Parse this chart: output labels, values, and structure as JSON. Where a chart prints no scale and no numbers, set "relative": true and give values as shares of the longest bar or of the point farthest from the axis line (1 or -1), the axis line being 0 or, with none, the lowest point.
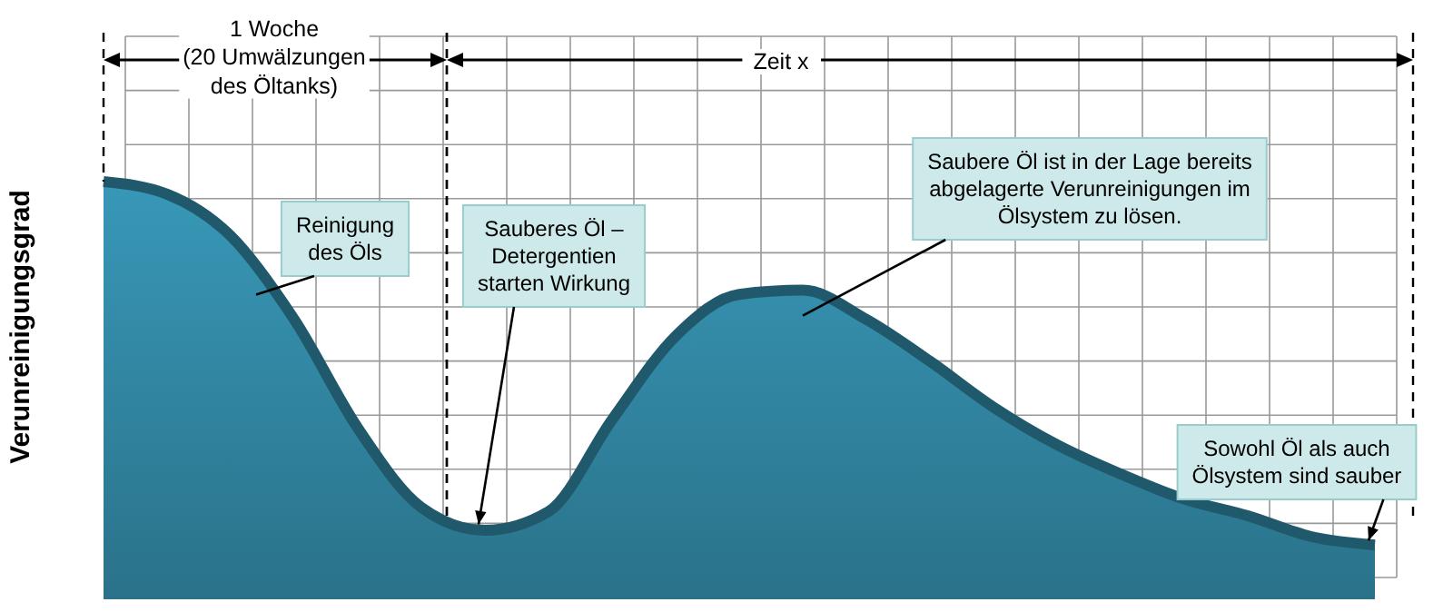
{
  "chart_data": {
    "type": "area",
    "relative": true,
    "ylabel": "Verunreinigungsgrad",
    "color": "#2f7f9a",
    "grid": true,
    "categories": [
      null,
      null,
      null,
      null,
      null,
      null,
      null,
      null,
      null,
      null,
      null,
      null,
      null,
      null,
      null,
      null,
      null,
      null,
      null,
      null,
      null
    ],
    "values": [
      1.0,
      0.97,
      0.87,
      0.67,
      0.41,
      0.22,
      0.165,
      0.21,
      0.43,
      0.63,
      0.73,
      0.74,
      0.67,
      0.57,
      0.46,
      0.37,
      0.3,
      0.24,
      0.2,
      0.15,
      0.13
    ],
    "annotations": [
      "1 Woche\n(20 Umwälzungen\ndes Öltanks)",
      "Zeit x",
      "Reinigung\ndes Öls",
      "Sauberes Öl –\nDetergentien\nstarten Wirkung",
      "Saubere Öl ist in der Lage bereits\nabgelagerte Verunreinigungen im\nÖlsystem zu lösen.",
      "Sowohl Öl als auch\nÖlsystem sind sauber"
    ]
  }
}
